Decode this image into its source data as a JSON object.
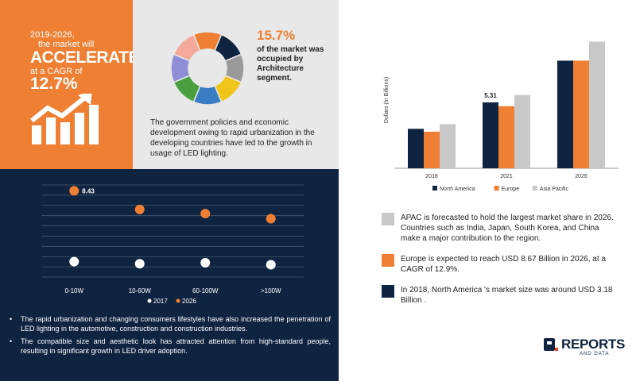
{
  "headline": {
    "line1": "2019-2026,",
    "line2": "the market will",
    "big": "ACCELERATE",
    "line3": "at a CAGR of",
    "pct": "12.7%"
  },
  "segment": {
    "pct": "15.7%",
    "desc": "of the market was occupied by Architecture segment.",
    "paragraph": "The government policies and economic development owing to rapid urbanization in the developing countries have led to the growth in usage of LED lighting.",
    "colors": [
      "#ee7f33",
      "#0e2440",
      "#9a9a9a",
      "#f0c419",
      "#3b7dc4",
      "#4aa040",
      "#8e8ed6",
      "#f4a99a"
    ],
    "values": [
      1,
      1,
      1,
      1,
      1,
      1,
      1,
      1
    ]
  },
  "bullets": [
    "The rapid urbanization and changing consumers lifestyles have also increased the penetration of LED lighting in the automotive, construction and construction industries.",
    "The compatible size and aesthetic look has attracted attention from high-standard people, resulting in significant growth in LED driver adoption."
  ],
  "notes": [
    {
      "text": "APAC is forecasted to hold the largest market share in 2026. Countries such as India, Japan, South Korea, and China make a major contribution to the region.",
      "color": "#c8c8c8"
    },
    {
      "text": "Europe is expected to reach USD  8.67 Billion in 2026, at a CAGR of 12.9%.",
      "color": "#ee7f33"
    },
    {
      "text": "In 2018, North America 's market size was around USD 3.18 Billion .",
      "color": "#0e2440"
    }
  ],
  "logo": {
    "name": "REPORTS",
    "sub": "AND DATA"
  },
  "chart_data": [
    {
      "type": "bar",
      "ylabel": "Dollars (In Billions)",
      "categories": [
        "2018",
        "2021",
        "2026"
      ],
      "series": [
        {
          "name": "North America",
          "values": [
            3.18,
            5.31,
            8.67
          ],
          "color": "#0e2440"
        },
        {
          "name": "Europe",
          "values": [
            2.95,
            5.0,
            8.67
          ],
          "color": "#ee7f33"
        },
        {
          "name": "Asia Pacific",
          "values": [
            3.55,
            5.9,
            10.2
          ],
          "color": "#c8c8c8"
        }
      ],
      "annotations": [
        {
          "category": "2021",
          "series": "North America",
          "label": "5.31"
        }
      ],
      "ylim": [
        0,
        11
      ],
      "grid": false,
      "legend": "bottom"
    },
    {
      "type": "scatter",
      "categories": [
        "0-10W",
        "10-60W",
        "60-100W",
        ">100W"
      ],
      "series": [
        {
          "name": "2017",
          "values": [
            1.5,
            1.3,
            1.4,
            1.2
          ],
          "color": "#ffffff"
        },
        {
          "name": "2026",
          "values": [
            8.43,
            6.6,
            6.2,
            5.7
          ],
          "color": "#ee7f33"
        }
      ],
      "annotations": [
        {
          "category": "0-10W",
          "series": "2026",
          "label": "8.43"
        }
      ],
      "ylim": [
        0,
        9
      ],
      "grid": true,
      "legend": "bottom"
    }
  ]
}
